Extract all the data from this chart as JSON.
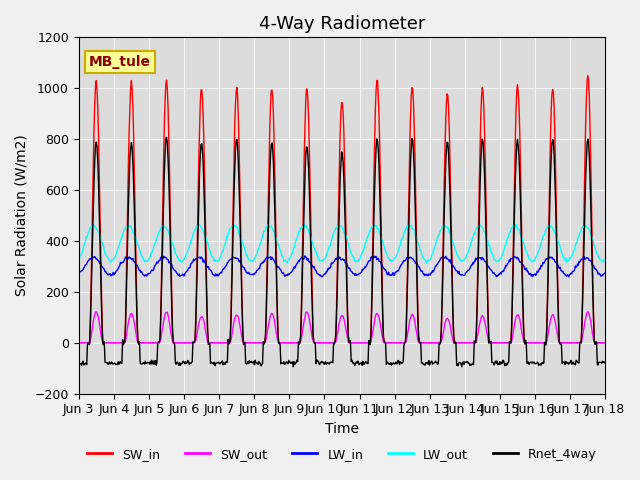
{
  "title": "4-Way Radiometer",
  "xlabel": "Time",
  "ylabel": "Solar Radiation (W/m2)",
  "ylim": [
    -200,
    1200
  ],
  "station_label": "MB_tule",
  "x_tick_labels": [
    "Jun 3",
    "Jun 4",
    "Jun 5",
    "Jun 6",
    "Jun 7",
    "Jun 8",
    "Jun 9",
    "Jun 10",
    "Jun 11",
    "Jun 12",
    "Jun 13",
    "Jun 14",
    "Jun 15",
    "Jun 16",
    "Jun 17",
    "Jun 18"
  ],
  "num_days": 15,
  "hours_per_day": 24,
  "SW_in_peak": 1040,
  "SW_out_peak": 120,
  "LW_in_base": 300,
  "LW_in_amplitude": 35,
  "LW_out_base": 390,
  "LW_out_amplitude": 70,
  "Rnet_peak": 800,
  "colors": {
    "SW_in": "#ff0000",
    "SW_out": "#ff00ff",
    "LW_in": "#0000ff",
    "LW_out": "#00ffff",
    "Rnet_4way": "#000000"
  },
  "legend_labels": [
    "SW_in",
    "SW_out",
    "LW_in",
    "LW_out",
    "Rnet_4way"
  ],
  "background_color": "#e8e8e8",
  "plot_bg_color": "#d8d8d8",
  "title_fontsize": 13,
  "label_fontsize": 10,
  "tick_fontsize": 9
}
